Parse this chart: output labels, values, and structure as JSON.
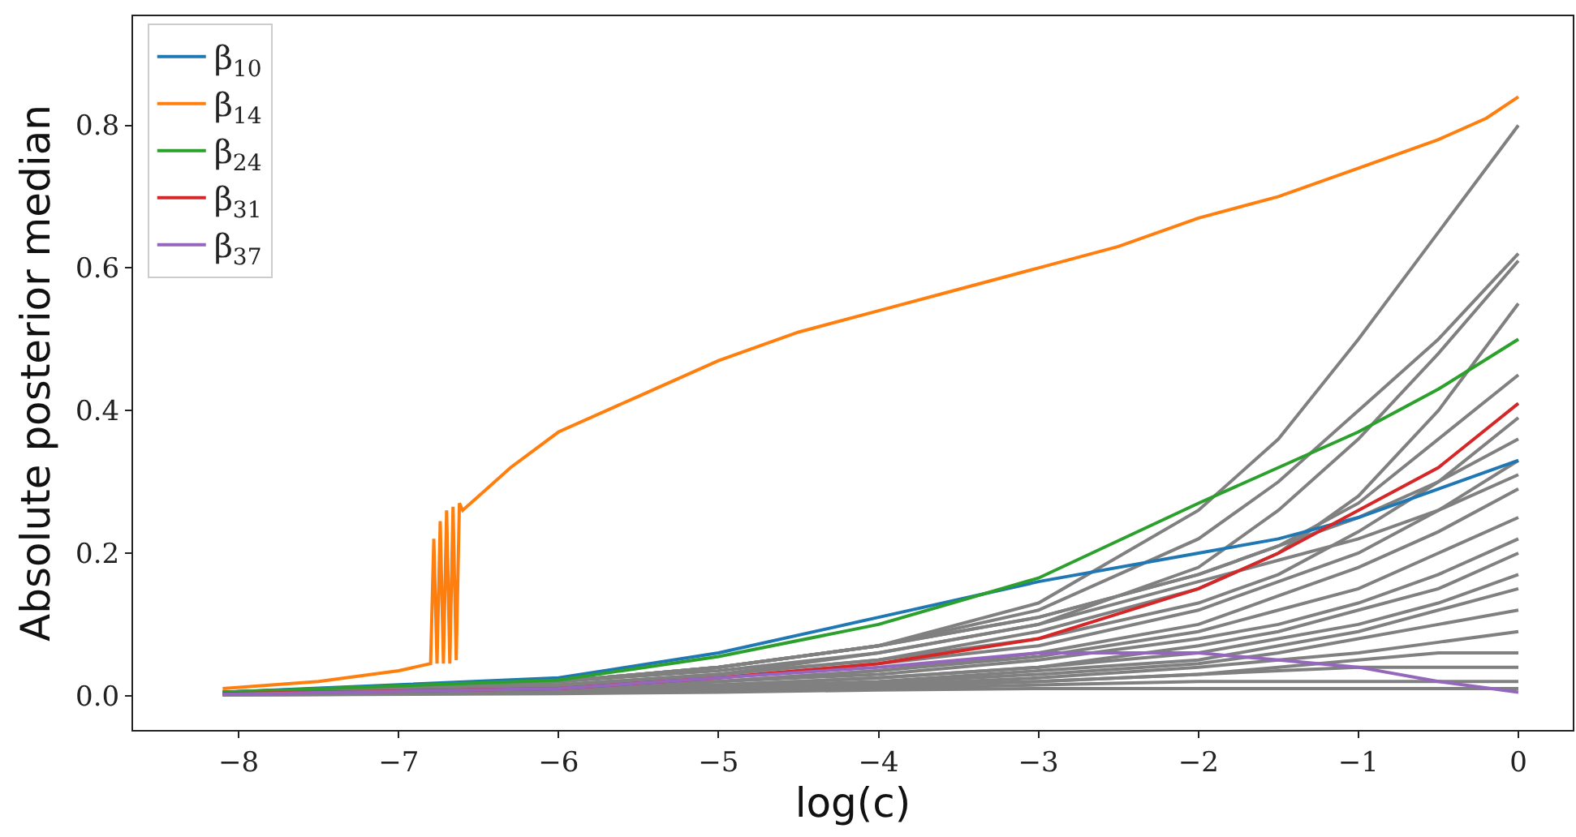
{
  "chart_data": {
    "type": "line",
    "xlabel": "log(c)",
    "ylabel": "Absolute posterior median",
    "xlim": [
      -8.66,
      0.34
    ],
    "ylim": [
      -0.048,
      0.953
    ],
    "xticks": [
      {
        "value": -8,
        "label": "−8"
      },
      {
        "value": -7,
        "label": "−7"
      },
      {
        "value": -6,
        "label": "−6"
      },
      {
        "value": -5,
        "label": "−5"
      },
      {
        "value": -4,
        "label": "−4"
      },
      {
        "value": -3,
        "label": "−3"
      },
      {
        "value": -2,
        "label": "−2"
      },
      {
        "value": -1,
        "label": "−1"
      },
      {
        "value": 0,
        "label": "0"
      }
    ],
    "yticks": [
      {
        "value": 0,
        "label": "0.0"
      },
      {
        "value": 0.2,
        "label": "0.2"
      },
      {
        "value": 0.4,
        "label": "0.4"
      },
      {
        "value": 0.6,
        "label": "0.6"
      },
      {
        "value": 0.8,
        "label": "0.8"
      }
    ],
    "legend": "top left",
    "marker": "none",
    "line_style": "solid",
    "x": [
      -8.1,
      -6,
      -5,
      -4,
      -3,
      -2,
      -1.5,
      -1,
      -0.5,
      0
    ],
    "series": [
      {
        "color": "#808080",
        "values": [
          0.005,
          0.02,
          0.04,
          0.07,
          0.13,
          0.26,
          0.36,
          0.5,
          0.65,
          0.8
        ]
      },
      {
        "color": "#808080",
        "values": [
          0.005,
          0.02,
          0.04,
          0.07,
          0.12,
          0.22,
          0.3,
          0.4,
          0.5,
          0.62
        ]
      },
      {
        "color": "#808080",
        "values": [
          0.005,
          0.02,
          0.035,
          0.06,
          0.1,
          0.18,
          0.26,
          0.36,
          0.48,
          0.61
        ]
      },
      {
        "color": "#808080",
        "values": [
          0.004,
          0.015,
          0.03,
          0.05,
          0.09,
          0.15,
          0.2,
          0.28,
          0.4,
          0.55
        ]
      },
      {
        "color": "#808080",
        "values": [
          0.004,
          0.02,
          0.04,
          0.07,
          0.11,
          0.17,
          0.21,
          0.27,
          0.36,
          0.45
        ]
      },
      {
        "color": "#808080",
        "values": [
          0.004,
          0.015,
          0.03,
          0.05,
          0.08,
          0.13,
          0.17,
          0.23,
          0.3,
          0.39
        ]
      },
      {
        "color": "#808080",
        "values": [
          0.004,
          0.02,
          0.04,
          0.07,
          0.11,
          0.17,
          0.21,
          0.25,
          0.3,
          0.36
        ]
      },
      {
        "color": "#808080",
        "values": [
          0.003,
          0.012,
          0.025,
          0.045,
          0.07,
          0.12,
          0.16,
          0.2,
          0.26,
          0.33
        ]
      },
      {
        "color": "#808080",
        "values": [
          0.003,
          0.015,
          0.03,
          0.06,
          0.1,
          0.16,
          0.19,
          0.22,
          0.26,
          0.31
        ]
      },
      {
        "color": "#808080",
        "values": [
          0.003,
          0.01,
          0.02,
          0.035,
          0.06,
          0.1,
          0.14,
          0.18,
          0.23,
          0.29
        ]
      },
      {
        "color": "#808080",
        "values": [
          0.003,
          0.01,
          0.02,
          0.035,
          0.055,
          0.09,
          0.12,
          0.15,
          0.2,
          0.25
        ]
      },
      {
        "color": "#808080",
        "values": [
          0.003,
          0.01,
          0.02,
          0.03,
          0.05,
          0.08,
          0.1,
          0.13,
          0.17,
          0.22
        ]
      },
      {
        "color": "#808080",
        "values": [
          0.002,
          0.01,
          0.015,
          0.025,
          0.04,
          0.07,
          0.09,
          0.12,
          0.15,
          0.2
        ]
      },
      {
        "color": "#808080",
        "values": [
          0.002,
          0.008,
          0.015,
          0.025,
          0.04,
          0.06,
          0.08,
          0.1,
          0.13,
          0.17
        ]
      },
      {
        "color": "#808080",
        "values": [
          0.002,
          0.008,
          0.012,
          0.02,
          0.035,
          0.05,
          0.07,
          0.09,
          0.12,
          0.15
        ]
      },
      {
        "color": "#808080",
        "values": [
          0.002,
          0.006,
          0.01,
          0.018,
          0.03,
          0.045,
          0.06,
          0.08,
          0.1,
          0.12
        ]
      },
      {
        "color": "#808080",
        "values": [
          0.002,
          0.006,
          0.01,
          0.015,
          0.025,
          0.04,
          0.05,
          0.06,
          0.075,
          0.09
        ]
      },
      {
        "color": "#808080",
        "values": [
          0.002,
          0.005,
          0.01,
          0.015,
          0.02,
          0.03,
          0.04,
          0.05,
          0.06,
          0.06
        ]
      },
      {
        "color": "#808080",
        "values": [
          0.002,
          0.005,
          0.008,
          0.012,
          0.02,
          0.03,
          0.035,
          0.04,
          0.04,
          0.04
        ]
      },
      {
        "color": "#808080",
        "values": [
          0.001,
          0.004,
          0.007,
          0.01,
          0.015,
          0.02,
          0.02,
          0.02,
          0.02,
          0.02
        ]
      },
      {
        "color": "#808080",
        "values": [
          0.001,
          0.003,
          0.005,
          0.008,
          0.01,
          0.01,
          0.01,
          0.01,
          0.01,
          0.01
        ]
      },
      {
        "name": "β$_{10}$",
        "color": "#1f77b4",
        "values": [
          0.005,
          0.025,
          0.06,
          0.11,
          0.16,
          0.2,
          0.22,
          0.25,
          0.29,
          0.33
        ]
      },
      {
        "name": "β$_{14}$",
        "color": "#ff7f0e",
        "x": [
          -8.1,
          -7.5,
          -7,
          -6.8,
          -6.78,
          -6.76,
          -6.74,
          -6.72,
          -6.7,
          -6.68,
          -6.66,
          -6.64,
          -6.62,
          -6.6,
          -6.5,
          -6.3,
          -6,
          -5.5,
          -5,
          -4.5,
          -4,
          -3.5,
          -3,
          -2.5,
          -2,
          -1.5,
          -1,
          -0.5,
          -0.2,
          0
        ],
        "values": [
          0.01,
          0.02,
          0.035,
          0.045,
          0.22,
          0.045,
          0.245,
          0.045,
          0.26,
          0.045,
          0.265,
          0.05,
          0.27,
          0.26,
          0.28,
          0.32,
          0.37,
          0.42,
          0.47,
          0.51,
          0.54,
          0.57,
          0.6,
          0.63,
          0.67,
          0.7,
          0.74,
          0.78,
          0.81,
          0.84
        ]
      },
      {
        "name": "β$_{24}$",
        "color": "#2ca02c",
        "values": [
          0.005,
          0.022,
          0.055,
          0.1,
          0.165,
          0.27,
          0.32,
          0.37,
          0.43,
          0.5
        ]
      },
      {
        "name": "β$_{31}$",
        "color": "#d62728",
        "values": [
          0.003,
          0.01,
          0.025,
          0.045,
          0.08,
          0.15,
          0.2,
          0.26,
          0.32,
          0.41
        ]
      },
      {
        "name": "β$_{37}$",
        "color": "#9467bd",
        "values": [
          0.002,
          0.01,
          0.025,
          0.04,
          0.06,
          0.06,
          0.05,
          0.04,
          0.02,
          0.005
        ]
      }
    ]
  }
}
